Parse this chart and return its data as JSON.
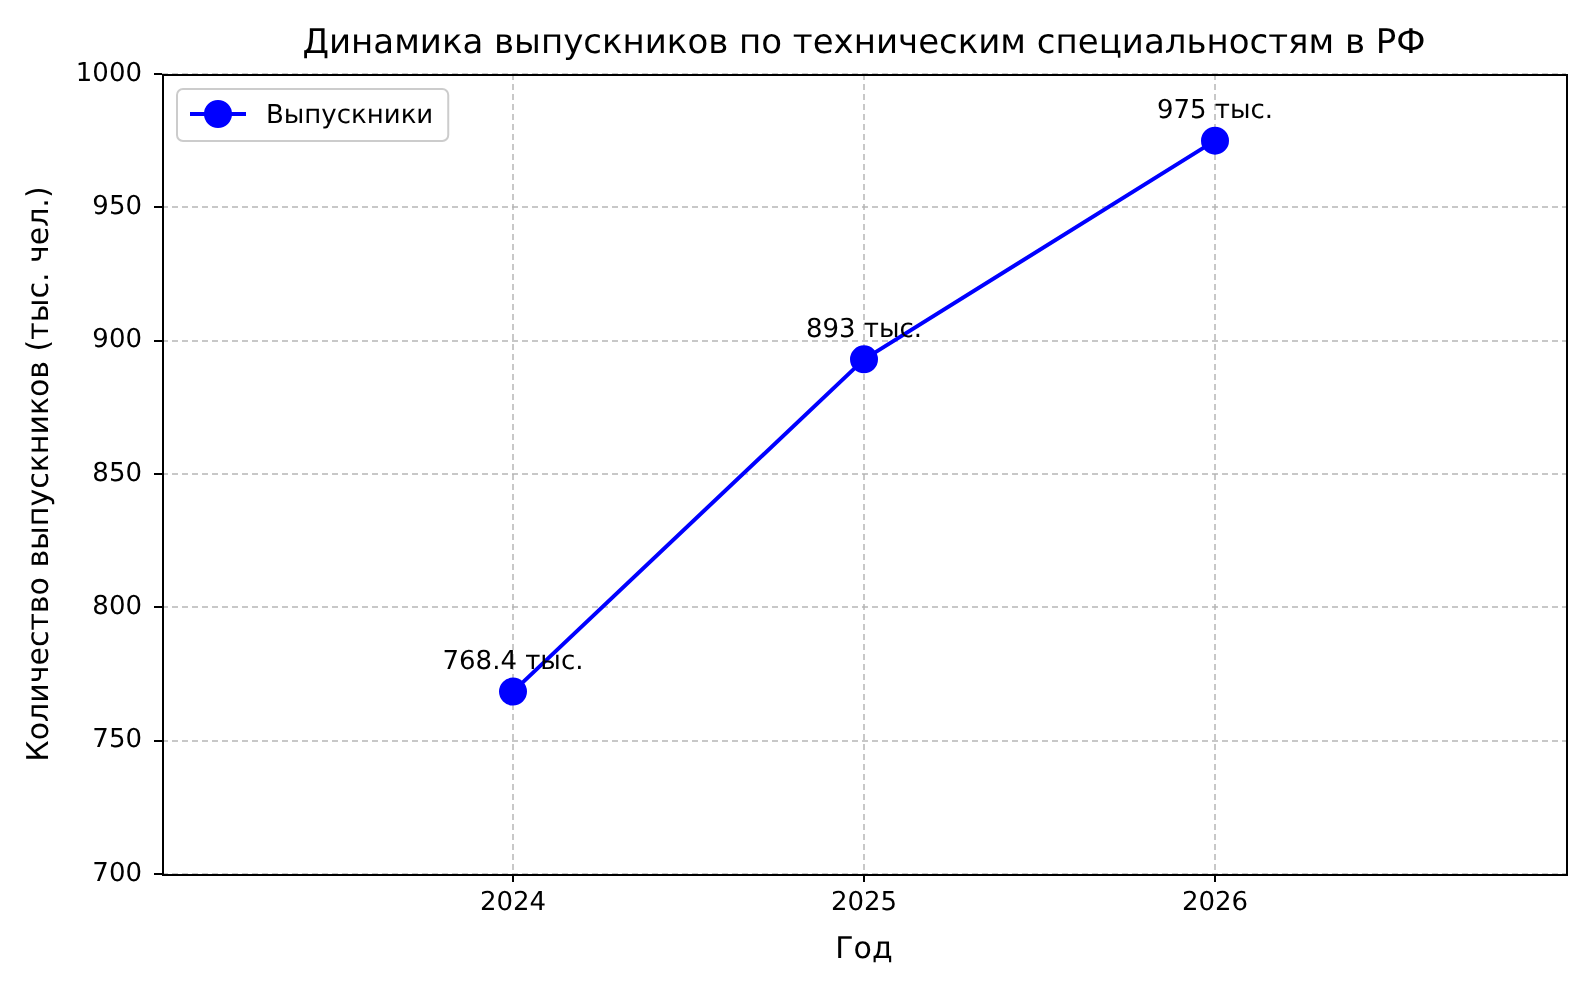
{
  "chart_data": {
    "type": "line",
    "title": "Динамика выпускников по техническим специальностям в РФ",
    "xlabel": "Год",
    "ylabel": "Количество выпускников (тыс. чел.)",
    "x": [
      2024,
      2025,
      2026
    ],
    "series": [
      {
        "name": "Выпускники",
        "color": "#0000ff",
        "values": [
          768.4,
          893,
          975
        ],
        "value_labels": [
          "768.4 тыс.",
          "893 тыс.",
          "975 тыс."
        ]
      }
    ],
    "xlim": [
      2023,
      2027
    ],
    "xticks": [
      2024,
      2025,
      2026
    ],
    "ylim": [
      700,
      1000
    ],
    "yticks": [
      700,
      750,
      800,
      850,
      900,
      950,
      1000
    ],
    "grid": true,
    "legend": "top left",
    "marker": "circle",
    "line_style": "solid"
  }
}
